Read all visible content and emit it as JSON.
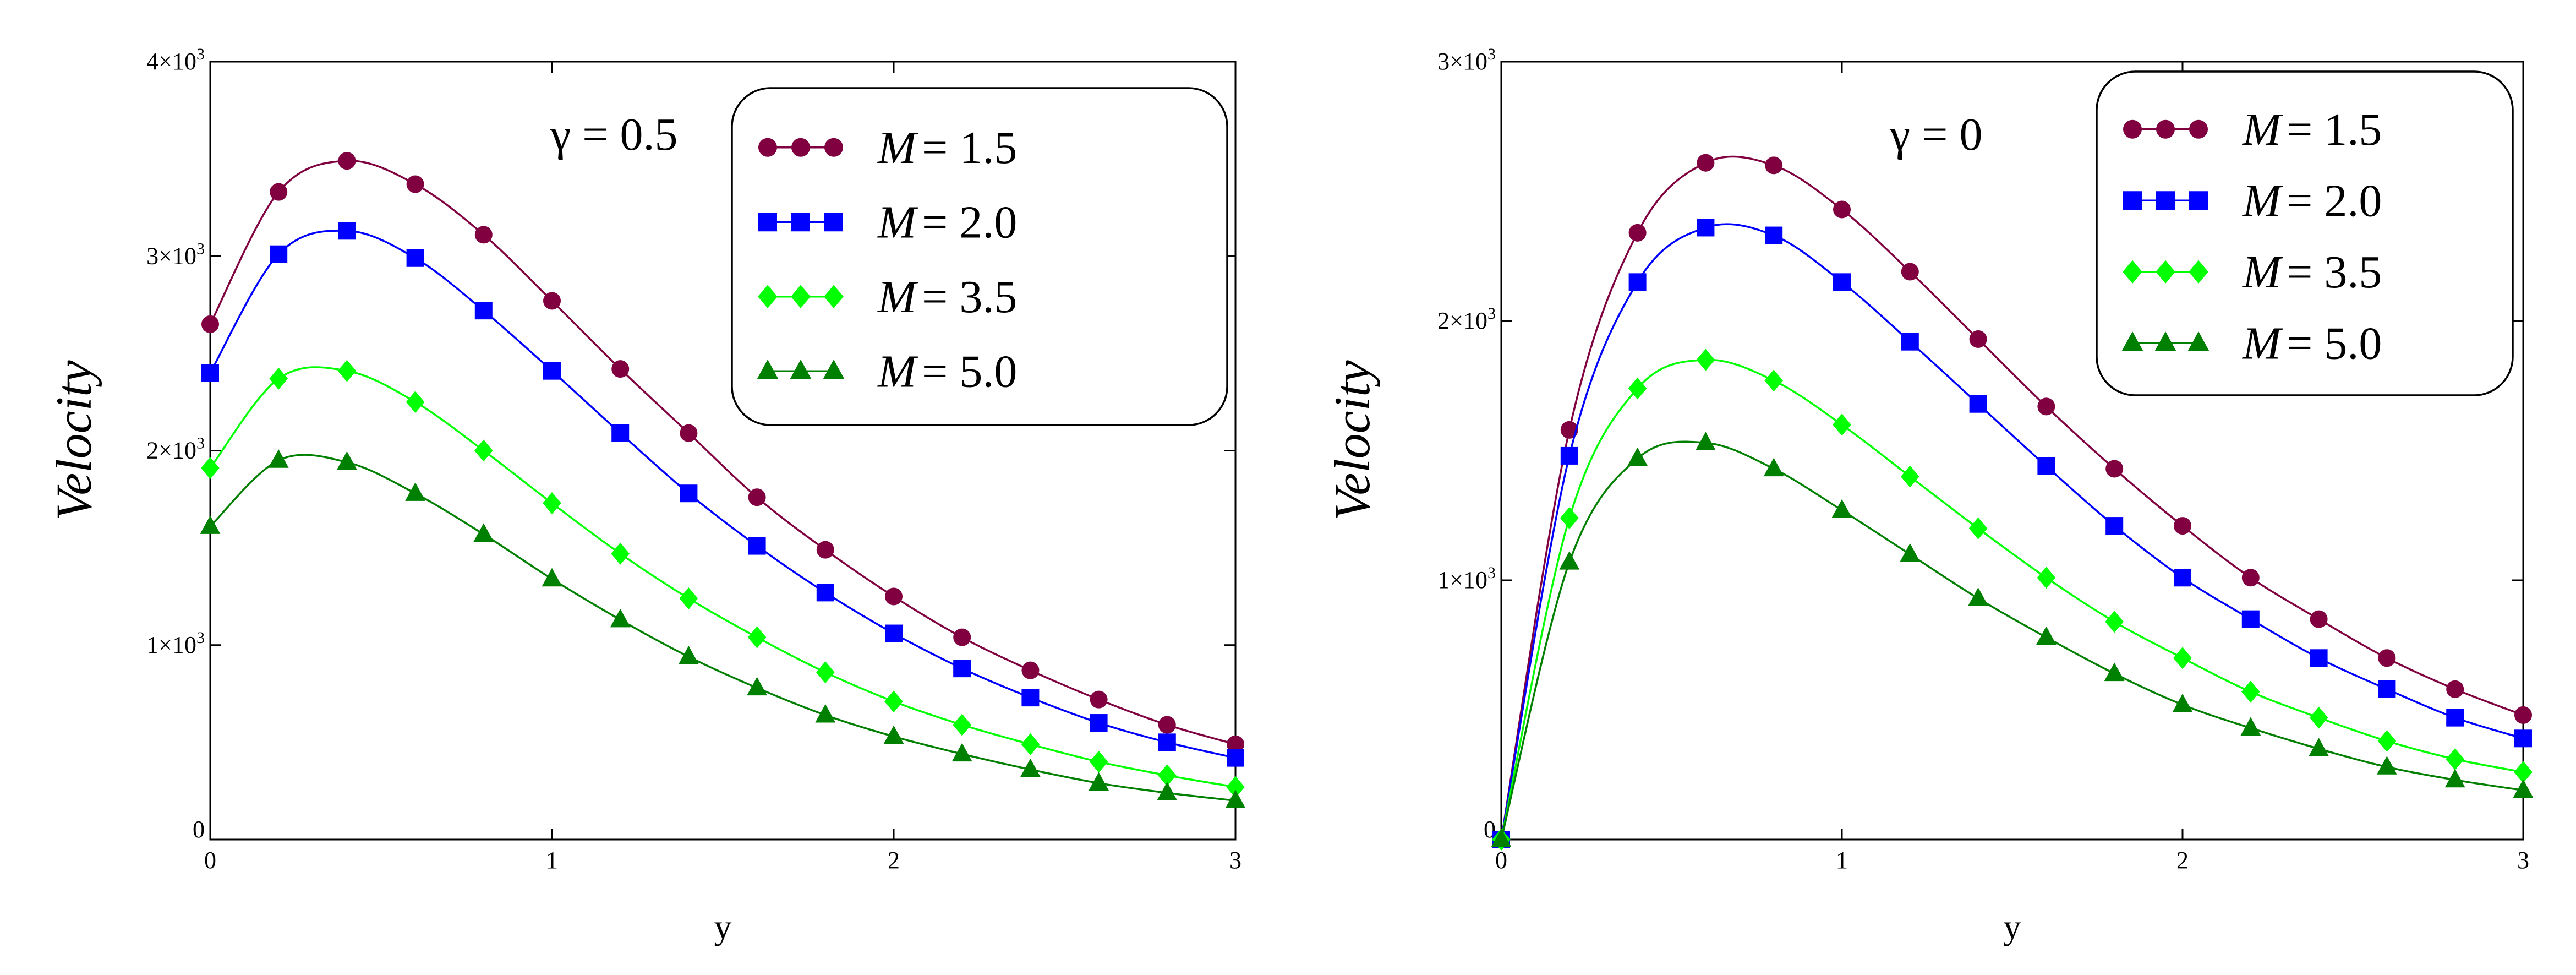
{
  "chart_data": [
    {
      "type": "line",
      "annotation": "γ = 0.5",
      "xlabel": "y",
      "ylabel": "Velocity",
      "xlim": [
        0,
        3
      ],
      "ylim": [
        0,
        4000
      ],
      "x_ticks": [
        {
          "value": 0,
          "label": "0"
        },
        {
          "value": 1,
          "label": "1"
        },
        {
          "value": 2,
          "label": "2"
        },
        {
          "value": 3,
          "label": "3"
        }
      ],
      "y_ticks": [
        {
          "value": 0,
          "base": "0",
          "exp": ""
        },
        {
          "value": 1000,
          "base": "1×10",
          "exp": "3"
        },
        {
          "value": 2000,
          "base": "2×10",
          "exp": "3"
        },
        {
          "value": 3000,
          "base": "3×10",
          "exp": "3"
        },
        {
          "value": 4000,
          "base": "4×10",
          "exp": "3"
        }
      ],
      "x": [
        0,
        0.2,
        0.4,
        0.6,
        0.8,
        1.0,
        1.2,
        1.4,
        1.6,
        1.8,
        2.0,
        2.2,
        2.4,
        2.6,
        2.8,
        3.0
      ],
      "series": [
        {
          "name": "M = 1.5",
          "label_var": "M",
          "label_val": "= 1.5",
          "color": "#800040",
          "marker": "circle",
          "values": [
            2650,
            3330,
            3490,
            3370,
            3110,
            2770,
            2420,
            2090,
            1760,
            1490,
            1250,
            1040,
            870,
            720,
            590,
            490
          ]
        },
        {
          "name": "M = 2.0",
          "label_var": "M",
          "label_val": "= 2.0",
          "color": "#0000ff",
          "marker": "square",
          "values": [
            2400,
            3010,
            3130,
            2990,
            2720,
            2410,
            2090,
            1780,
            1510,
            1270,
            1060,
            880,
            730,
            600,
            500,
            420
          ]
        },
        {
          "name": "M = 3.5",
          "label_var": "M",
          "label_val": "= 3.5",
          "color": "#00ff00",
          "marker": "diamond",
          "values": [
            1910,
            2370,
            2410,
            2250,
            2000,
            1730,
            1470,
            1240,
            1040,
            860,
            710,
            590,
            490,
            400,
            330,
            270
          ]
        },
        {
          "name": "M = 5.0",
          "label_var": "M",
          "label_val": "= 5.0",
          "color": "#008000",
          "marker": "triangle",
          "values": [
            1610,
            1950,
            1940,
            1780,
            1570,
            1340,
            1130,
            940,
            780,
            640,
            530,
            440,
            360,
            290,
            240,
            200
          ]
        }
      ]
    },
    {
      "type": "line",
      "annotation": "γ = 0",
      "xlabel": "y",
      "ylabel": "Velocity",
      "xlim": [
        0,
        3
      ],
      "ylim": [
        0,
        3000
      ],
      "x_ticks": [
        {
          "value": 0,
          "label": "0"
        },
        {
          "value": 1,
          "label": "1"
        },
        {
          "value": 2,
          "label": "2"
        },
        {
          "value": 3,
          "label": "3"
        }
      ],
      "y_ticks": [
        {
          "value": 0,
          "base": "0",
          "exp": ""
        },
        {
          "value": 1000,
          "base": "1×10",
          "exp": "3"
        },
        {
          "value": 2000,
          "base": "2×10",
          "exp": "3"
        },
        {
          "value": 3000,
          "base": "3×10",
          "exp": "3"
        }
      ],
      "x": [
        0,
        0.2,
        0.4,
        0.6,
        0.8,
        1.0,
        1.2,
        1.4,
        1.6,
        1.8,
        2.0,
        2.2,
        2.4,
        2.6,
        2.8,
        3.0
      ],
      "series": [
        {
          "name": "M = 1.5",
          "label_var": "M",
          "label_val": "= 1.5",
          "color": "#800040",
          "marker": "circle",
          "values": [
            0,
            1580,
            2340,
            2610,
            2600,
            2430,
            2190,
            1930,
            1670,
            1430,
            1210,
            1010,
            850,
            700,
            580,
            480
          ]
        },
        {
          "name": "M = 2.0",
          "label_var": "M",
          "label_val": "= 2.0",
          "color": "#0000ff",
          "marker": "square",
          "values": [
            0,
            1480,
            2150,
            2360,
            2330,
            2150,
            1920,
            1680,
            1440,
            1210,
            1010,
            850,
            700,
            580,
            470,
            390
          ]
        },
        {
          "name": "M = 3.5",
          "label_var": "M",
          "label_val": "= 3.5",
          "color": "#00ff00",
          "marker": "diamond",
          "values": [
            0,
            1240,
            1740,
            1850,
            1770,
            1600,
            1400,
            1200,
            1010,
            840,
            700,
            570,
            470,
            380,
            310,
            260
          ]
        },
        {
          "name": "M = 5.0",
          "label_var": "M",
          "label_val": "= 5.0",
          "color": "#008000",
          "marker": "triangle",
          "values": [
            0,
            1070,
            1470,
            1530,
            1430,
            1270,
            1100,
            930,
            780,
            640,
            520,
            430,
            350,
            280,
            230,
            190
          ]
        }
      ]
    }
  ]
}
